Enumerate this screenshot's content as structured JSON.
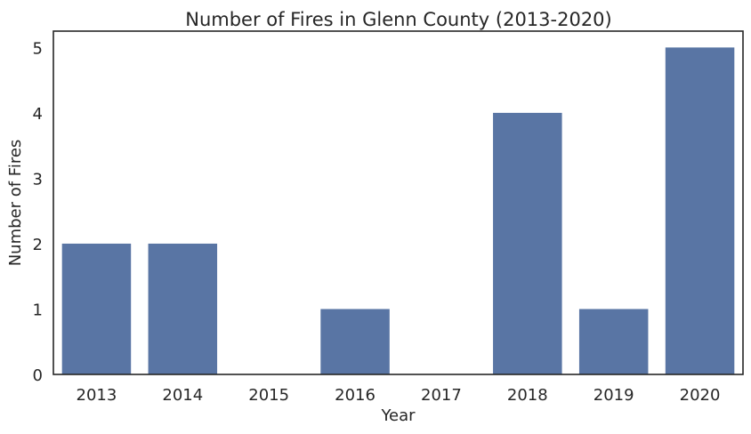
{
  "chart_data": {
    "type": "bar",
    "title": "Number of Fires in Glenn County (2013-2020)",
    "xlabel": "Year",
    "ylabel": "Number of Fires",
    "categories": [
      "2013",
      "2014",
      "2015",
      "2016",
      "2017",
      "2018",
      "2019",
      "2020"
    ],
    "values": [
      2,
      2,
      0,
      1,
      0,
      4,
      1,
      5
    ],
    "yticks": [
      "0",
      "1",
      "2",
      "3",
      "4",
      "5"
    ],
    "ylim": [
      0,
      5.25
    ],
    "grid": false,
    "bar_color": "#5975a4",
    "series": [
      {
        "values": [
          2,
          2,
          0,
          1,
          0,
          4,
          1,
          5
        ]
      }
    ]
  }
}
